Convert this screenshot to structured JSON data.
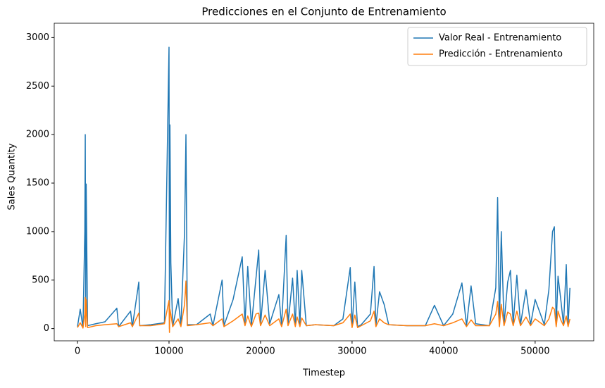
{
  "chart_data": {
    "type": "line",
    "title": "Predicciones en el Conjunto de Entrenamiento",
    "xlabel": "Timestep",
    "ylabel": "Sales Quantity",
    "x": [
      0,
      300,
      600,
      800,
      850,
      900,
      950,
      1100,
      2000,
      3000,
      4300,
      4500,
      5800,
      6000,
      6700,
      6800,
      8000,
      9500,
      10000,
      10050,
      10100,
      10200,
      10400,
      11000,
      11300,
      11700,
      11850,
      12000,
      13000,
      14500,
      14800,
      15800,
      16000,
      17000,
      18000,
      18300,
      18600,
      19000,
      19500,
      19800,
      20000,
      20500,
      21000,
      22000,
      22300,
      22800,
      23000,
      23500,
      23800,
      24000,
      24300,
      24500,
      25000,
      26000,
      28000,
      29000,
      29800,
      30000,
      30300,
      30600,
      31000,
      32000,
      32400,
      32600,
      33000,
      33500,
      34000,
      36000,
      38000,
      39000,
      40000,
      41000,
      42000,
      42500,
      43000,
      43500,
      45000,
      45700,
      45900,
      46100,
      46300,
      46600,
      47000,
      47300,
      47600,
      48000,
      48400,
      49000,
      49500,
      50000,
      51000,
      51500,
      51900,
      52100,
      52300,
      52500,
      52800,
      53100,
      53400,
      53600,
      53800
    ],
    "series": [
      {
        "name": "Valor Real - Entrenamiento",
        "color": "#1f77b4",
        "values": [
          20,
          200,
          10,
          1000,
          2000,
          50,
          1490,
          30,
          50,
          70,
          210,
          20,
          180,
          20,
          480,
          30,
          40,
          60,
          2900,
          0,
          2100,
          680,
          20,
          310,
          30,
          1000,
          2000,
          40,
          40,
          150,
          30,
          500,
          30,
          300,
          740,
          50,
          640,
          30,
          520,
          810,
          40,
          600,
          50,
          350,
          30,
          960,
          40,
          520,
          30,
          600,
          30,
          600,
          30,
          40,
          30,
          100,
          630,
          20,
          480,
          20,
          40,
          150,
          640,
          30,
          380,
          250,
          40,
          30,
          30,
          240,
          30,
          150,
          470,
          30,
          440,
          50,
          30,
          420,
          1350,
          30,
          1000,
          40,
          480,
          600,
          50,
          550,
          40,
          400,
          40,
          300,
          40,
          400,
          1000,
          1050,
          30,
          540,
          300,
          40,
          660,
          30,
          420
        ]
      },
      {
        "name": "Predicción - Entrenamiento",
        "color": "#ff7f0e",
        "values": [
          10,
          60,
          5,
          150,
          320,
          20,
          300,
          10,
          30,
          40,
          50,
          20,
          60,
          20,
          160,
          30,
          30,
          50,
          290,
          -40,
          200,
          150,
          20,
          100,
          20,
          250,
          490,
          30,
          40,
          60,
          30,
          100,
          20,
          80,
          150,
          30,
          130,
          20,
          150,
          160,
          30,
          140,
          30,
          100,
          20,
          200,
          30,
          150,
          20,
          120,
          20,
          110,
          30,
          40,
          30,
          60,
          150,
          10,
          140,
          10,
          30,
          80,
          180,
          20,
          100,
          60,
          40,
          30,
          30,
          50,
          30,
          60,
          100,
          20,
          90,
          30,
          30,
          150,
          280,
          20,
          250,
          30,
          170,
          150,
          30,
          180,
          30,
          120,
          30,
          100,
          30,
          100,
          220,
          200,
          20,
          180,
          90,
          30,
          130,
          20,
          100
        ]
      }
    ],
    "xlim": [
      -2540,
      56400
    ],
    "ylim": [
      -126,
      3148
    ],
    "xticks": [
      0,
      10000,
      20000,
      30000,
      40000,
      50000
    ],
    "yticks": [
      0,
      500,
      1000,
      1500,
      2000,
      2500,
      3000
    ],
    "legend": "upper right"
  }
}
